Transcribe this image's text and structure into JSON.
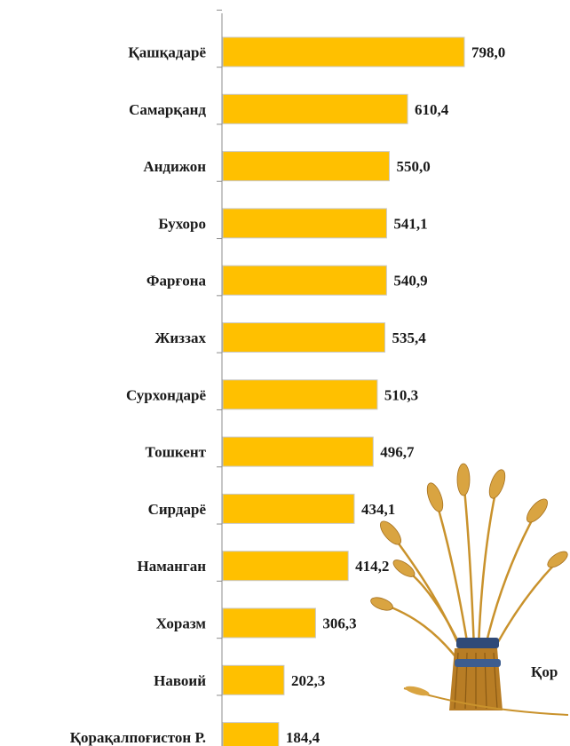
{
  "chart_data": {
    "type": "bar",
    "orientation": "horizontal",
    "categories": [
      "Қашқадарё",
      "Самарқанд",
      "Андижон",
      "Бухоро",
      "Фарғона",
      "Жиззах",
      "Сурхондарё",
      "Тошкент",
      "Сирдарё",
      "Наманган",
      "Хоразм",
      "Навоий",
      "Қорақалпоғистон Р."
    ],
    "values": [
      798.0,
      610.4,
      550.0,
      541.1,
      540.9,
      535.4,
      510.3,
      496.7,
      434.1,
      414.2,
      306.3,
      202.3,
      184.4
    ],
    "value_labels": [
      "798,0",
      "610,4",
      "550,0",
      "541,1",
      "540,9",
      "535,4",
      "510,3",
      "496,7",
      "434,1",
      "414,2",
      "306,3",
      "202,3",
      "184,4"
    ],
    "title": "",
    "xlabel": "",
    "ylabel": "",
    "grid": false,
    "bar_color": "#FFC000"
  },
  "decoration": {
    "icon": "wheat-sheaf-icon",
    "partial_text": "Қор"
  }
}
